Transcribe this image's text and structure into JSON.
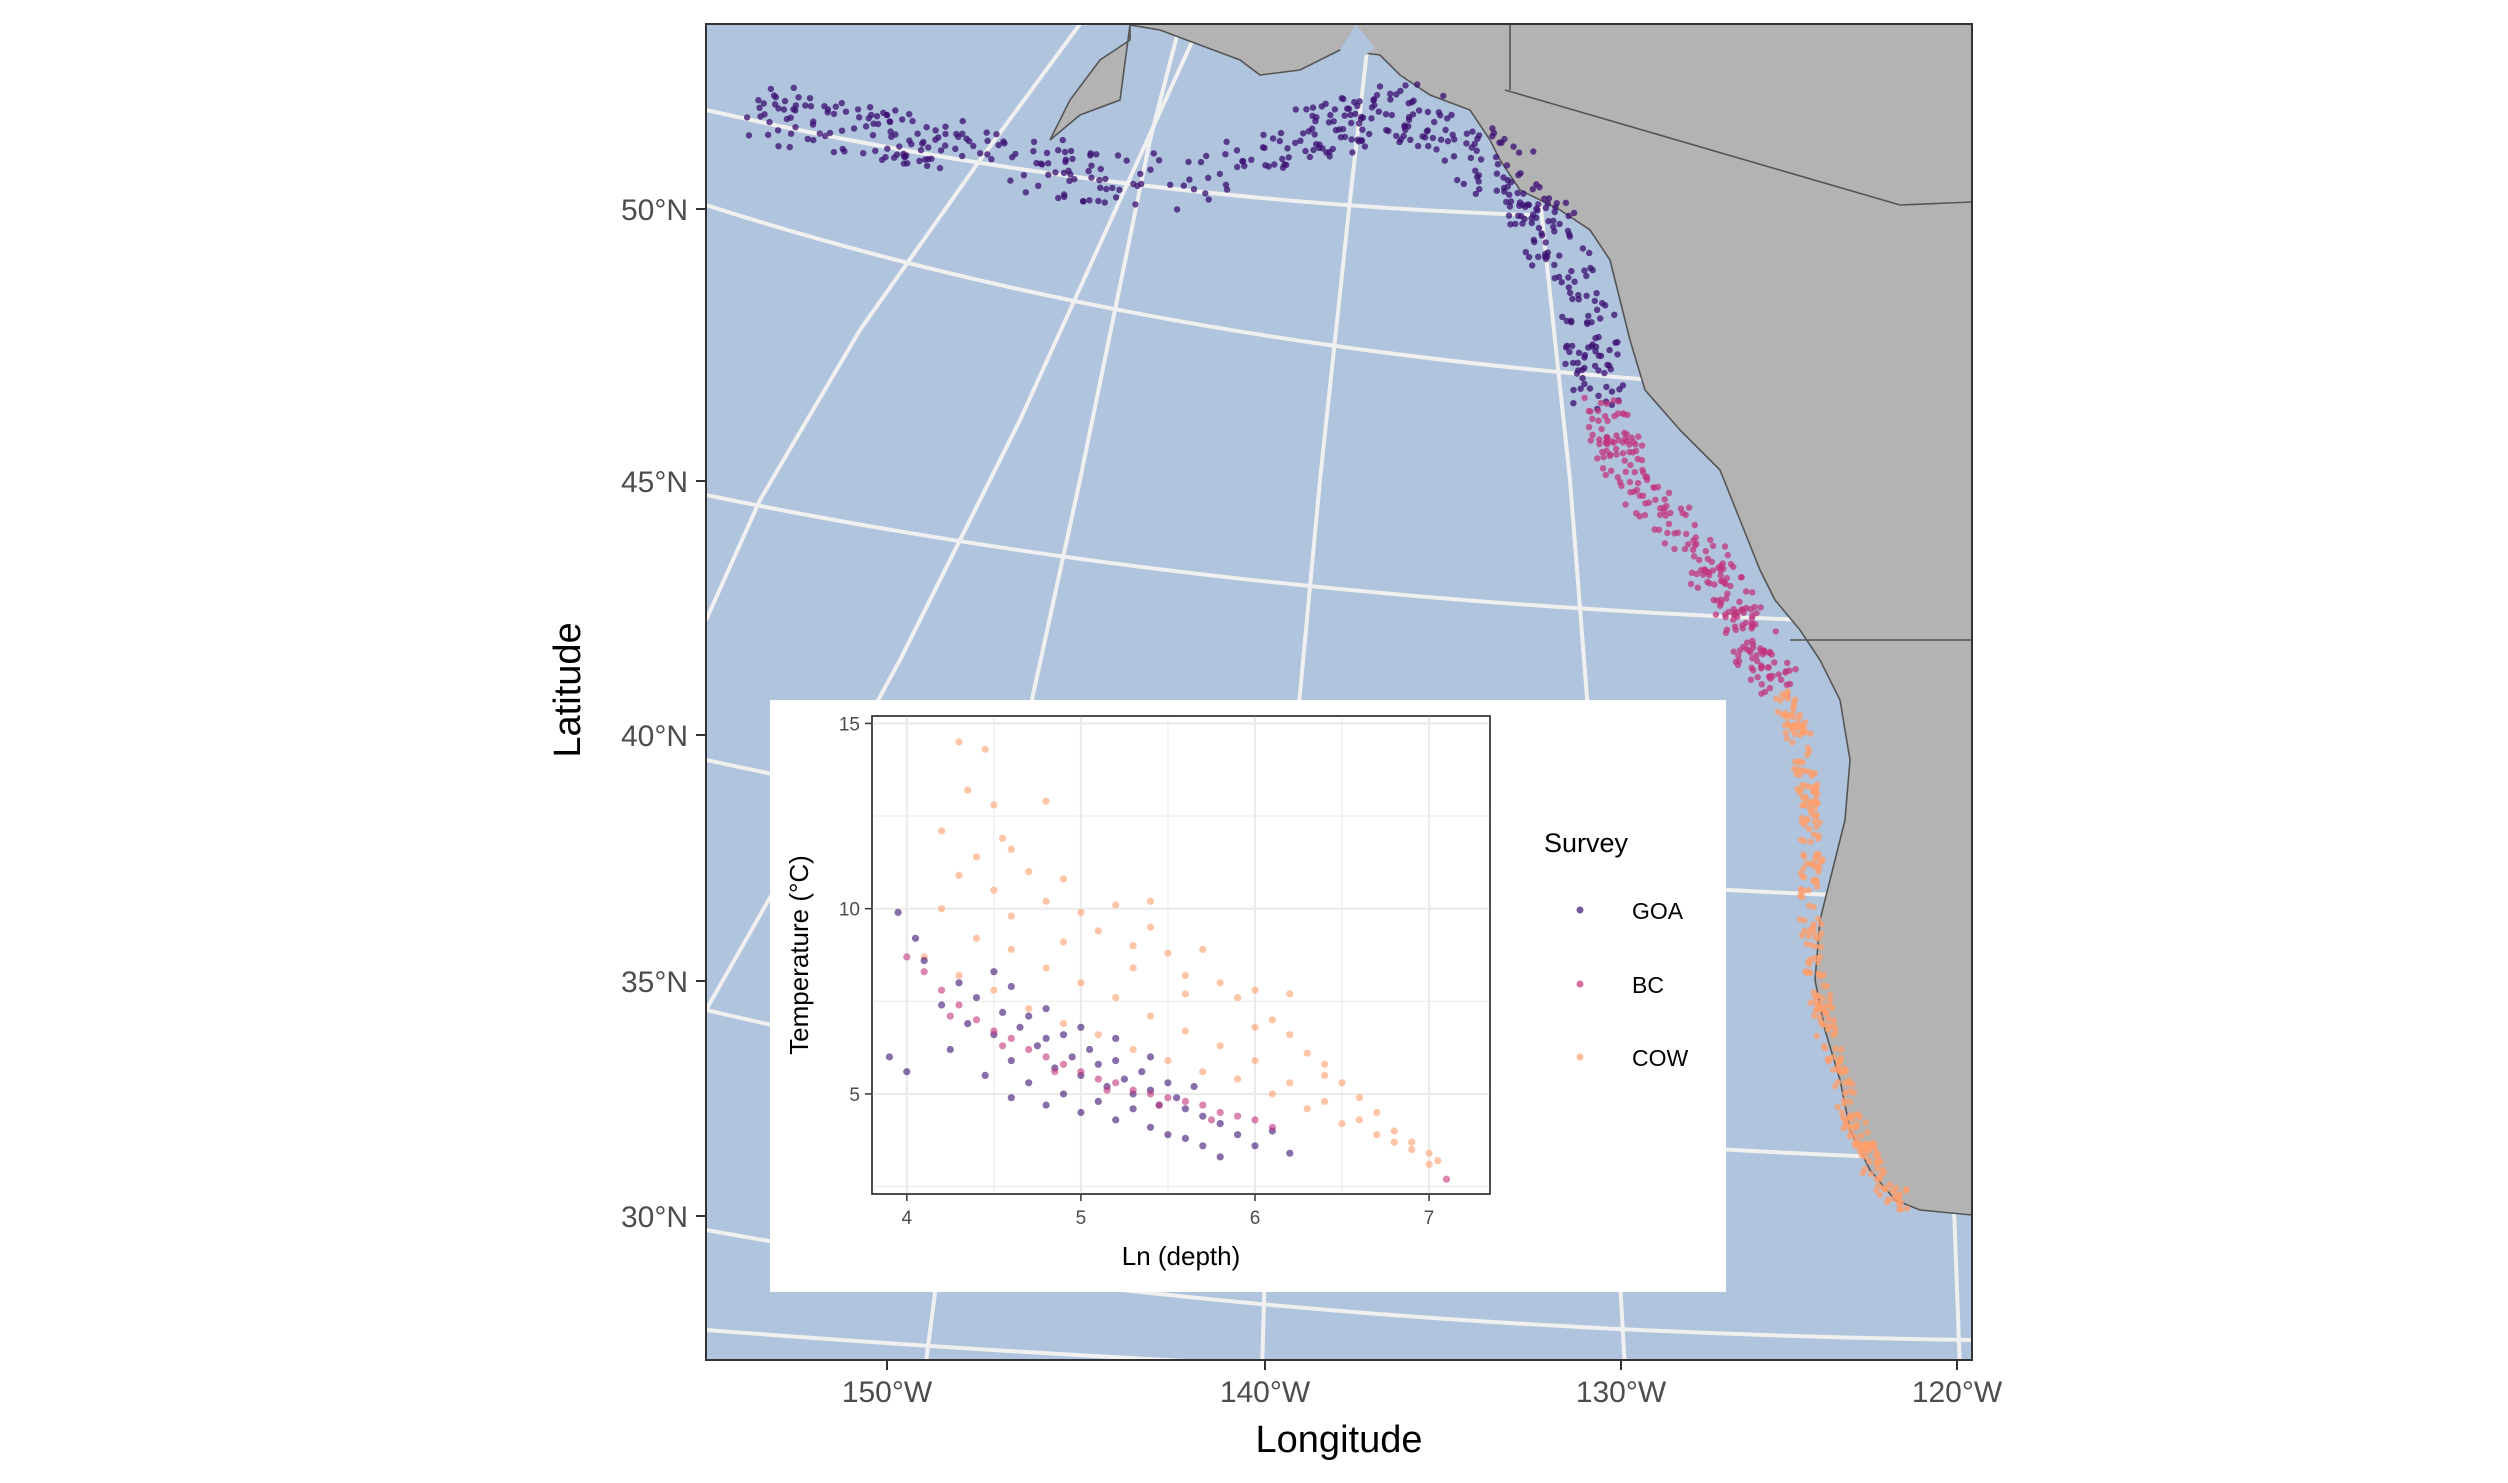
{
  "map": {
    "xlabel": "Longitude",
    "ylabel": "Latitude",
    "lon_ticks": [
      "150°W",
      "140°W",
      "130°W",
      "120°W"
    ],
    "lat_ticks": [
      "50°N",
      "45°N",
      "40°N",
      "35°N",
      "30°N"
    ],
    "colors": {
      "ocean": "#b0c4de",
      "land": "#b3b3b3",
      "graticule": "#f0f0f0",
      "border": "#555555"
    },
    "survey_regions": [
      {
        "survey": "GOA",
        "color": "#3b0f70"
      },
      {
        "survey": "BC",
        "color": "#c1357d"
      },
      {
        "survey": "COW",
        "color": "#fd9f6c"
      }
    ]
  },
  "chart_data": {
    "type": "scatter",
    "xlabel": "Ln (depth)",
    "ylabel": "Temperature (°C)",
    "xlim": [
      3.8,
      7.35
    ],
    "ylim": [
      2.3,
      15.2
    ],
    "x_ticks": [
      "4",
      "5",
      "6",
      "7"
    ],
    "y_ticks": [
      "5",
      "10",
      "15"
    ],
    "grid": true,
    "legend": {
      "title": "Survey",
      "placement": "right"
    },
    "series": [
      {
        "name": "GOA",
        "color": "#3b0f70",
        "points": [
          [
            4.1,
            8.6
          ],
          [
            4.2,
            7.4
          ],
          [
            4.3,
            8.0
          ],
          [
            4.35,
            6.9
          ],
          [
            4.4,
            7.6
          ],
          [
            4.5,
            6.6
          ],
          [
            4.55,
            7.2
          ],
          [
            4.6,
            5.9
          ],
          [
            4.65,
            6.8
          ],
          [
            4.7,
            7.1
          ],
          [
            4.75,
            6.3
          ],
          [
            4.8,
            6.5
          ],
          [
            4.85,
            5.7
          ],
          [
            4.9,
            6.6
          ],
          [
            4.95,
            6.0
          ],
          [
            5.0,
            5.5
          ],
          [
            5.05,
            6.2
          ],
          [
            5.1,
            5.8
          ],
          [
            5.15,
            5.2
          ],
          [
            5.2,
            5.9
          ],
          [
            5.25,
            5.4
          ],
          [
            5.3,
            5.0
          ],
          [
            5.35,
            5.6
          ],
          [
            5.4,
            5.1
          ],
          [
            5.45,
            4.7
          ],
          [
            5.5,
            5.3
          ],
          [
            5.55,
            4.9
          ],
          [
            5.6,
            4.6
          ],
          [
            5.65,
            5.2
          ],
          [
            5.7,
            4.4
          ],
          [
            5.8,
            4.2
          ],
          [
            5.9,
            3.9
          ],
          [
            6.0,
            3.6
          ],
          [
            6.1,
            4.0
          ],
          [
            6.2,
            3.4
          ],
          [
            3.95,
            9.9
          ],
          [
            4.05,
            9.2
          ],
          [
            4.25,
            6.2
          ],
          [
            4.45,
            5.5
          ],
          [
            4.6,
            4.9
          ],
          [
            4.7,
            5.3
          ],
          [
            4.8,
            4.7
          ],
          [
            4.9,
            5.0
          ],
          [
            5.0,
            4.5
          ],
          [
            5.1,
            4.8
          ],
          [
            5.2,
            4.3
          ],
          [
            5.3,
            4.6
          ],
          [
            5.4,
            4.1
          ],
          [
            5.5,
            3.9
          ],
          [
            5.6,
            3.8
          ],
          [
            5.7,
            3.6
          ],
          [
            5.8,
            3.3
          ],
          [
            4.5,
            8.3
          ],
          [
            4.6,
            7.9
          ],
          [
            4.8,
            7.3
          ],
          [
            5.0,
            6.8
          ],
          [
            5.2,
            6.5
          ],
          [
            5.4,
            6.0
          ],
          [
            3.9,
            6.0
          ],
          [
            4.0,
            5.6
          ]
        ]
      },
      {
        "name": "BC",
        "color": "#c1357d",
        "points": [
          [
            4.0,
            8.7
          ],
          [
            4.1,
            8.3
          ],
          [
            4.2,
            7.8
          ],
          [
            4.3,
            7.4
          ],
          [
            4.4,
            7.0
          ],
          [
            4.5,
            6.7
          ],
          [
            4.6,
            6.5
          ],
          [
            4.7,
            6.2
          ],
          [
            4.8,
            6.0
          ],
          [
            4.9,
            5.8
          ],
          [
            5.0,
            5.6
          ],
          [
            5.1,
            5.4
          ],
          [
            5.2,
            5.3
          ],
          [
            5.3,
            5.1
          ],
          [
            5.4,
            5.0
          ],
          [
            5.5,
            4.9
          ],
          [
            5.6,
            4.8
          ],
          [
            5.7,
            4.7
          ],
          [
            5.8,
            4.5
          ],
          [
            5.9,
            4.4
          ],
          [
            6.0,
            4.3
          ],
          [
            6.1,
            4.1
          ],
          [
            4.25,
            7.1
          ],
          [
            4.55,
            6.3
          ],
          [
            4.85,
            5.6
          ],
          [
            5.15,
            5.1
          ],
          [
            5.45,
            4.7
          ],
          [
            5.75,
            4.3
          ],
          [
            7.1,
            2.7
          ]
        ]
      },
      {
        "name": "COW",
        "color": "#fd9f6c",
        "points": [
          [
            4.3,
            14.5
          ],
          [
            4.45,
            14.3
          ],
          [
            4.5,
            12.8
          ],
          [
            4.2,
            12.1
          ],
          [
            4.4,
            11.4
          ],
          [
            4.3,
            10.9
          ],
          [
            4.6,
            11.6
          ],
          [
            4.7,
            11.0
          ],
          [
            4.5,
            10.5
          ],
          [
            4.8,
            10.2
          ],
          [
            4.9,
            10.8
          ],
          [
            5.0,
            9.9
          ],
          [
            5.1,
            9.4
          ],
          [
            5.2,
            10.1
          ],
          [
            5.3,
            9.0
          ],
          [
            5.4,
            9.5
          ],
          [
            5.5,
            8.8
          ],
          [
            5.6,
            8.2
          ],
          [
            5.7,
            8.9
          ],
          [
            5.8,
            8.0
          ],
          [
            5.9,
            7.6
          ],
          [
            6.0,
            7.8
          ],
          [
            6.1,
            7.0
          ],
          [
            6.2,
            6.6
          ],
          [
            6.3,
            6.1
          ],
          [
            6.4,
            5.8
          ],
          [
            6.5,
            5.3
          ],
          [
            6.6,
            4.9
          ],
          [
            6.7,
            4.5
          ],
          [
            6.8,
            4.0
          ],
          [
            6.9,
            3.7
          ],
          [
            7.0,
            3.4
          ],
          [
            7.05,
            3.2
          ],
          [
            4.2,
            10.0
          ],
          [
            4.4,
            9.2
          ],
          [
            4.6,
            8.9
          ],
          [
            4.8,
            8.4
          ],
          [
            5.0,
            8.0
          ],
          [
            5.2,
            7.6
          ],
          [
            5.4,
            7.1
          ],
          [
            5.6,
            6.7
          ],
          [
            5.8,
            6.3
          ],
          [
            6.0,
            5.9
          ],
          [
            6.2,
            5.3
          ],
          [
            6.4,
            4.8
          ],
          [
            6.6,
            4.3
          ],
          [
            6.8,
            3.7
          ],
          [
            7.0,
            3.1
          ],
          [
            4.1,
            8.7
          ],
          [
            4.3,
            8.2
          ],
          [
            4.5,
            7.8
          ],
          [
            4.7,
            7.3
          ],
          [
            4.9,
            6.9
          ],
          [
            5.1,
            6.6
          ],
          [
            5.3,
            6.2
          ],
          [
            5.5,
            5.9
          ],
          [
            5.7,
            5.6
          ],
          [
            5.9,
            5.4
          ],
          [
            6.1,
            5.0
          ],
          [
            6.3,
            4.6
          ],
          [
            6.5,
            4.2
          ],
          [
            6.7,
            3.9
          ],
          [
            6.9,
            3.5
          ],
          [
            4.6,
            9.8
          ],
          [
            4.9,
            9.1
          ],
          [
            5.3,
            8.4
          ],
          [
            5.6,
            7.7
          ],
          [
            6.0,
            6.8
          ],
          [
            6.4,
            5.5
          ],
          [
            4.8,
            12.9
          ],
          [
            5.4,
            10.2
          ],
          [
            6.2,
            7.7
          ],
          [
            4.35,
            13.2
          ],
          [
            4.55,
            11.9
          ]
        ]
      }
    ]
  }
}
